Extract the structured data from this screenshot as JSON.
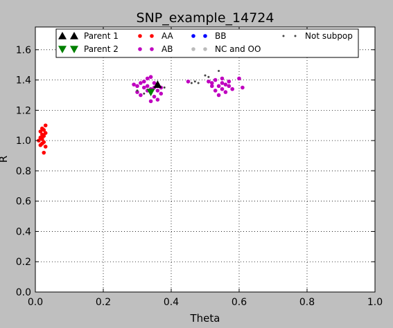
{
  "chart_data": {
    "type": "scatter",
    "title": "SNP_example_14724",
    "xlabel": "Theta",
    "ylabel": "R",
    "xlim": [
      0.0,
      1.0
    ],
    "ylim": [
      0.0,
      1.75
    ],
    "xticks": [
      "0.0",
      "0.2",
      "0.4",
      "0.6",
      "0.8",
      "1.0"
    ],
    "yticks": [
      "0.0",
      "0.2",
      "0.4",
      "0.6",
      "0.8",
      "1.0",
      "1.2",
      "1.4",
      "1.6"
    ],
    "grid": true,
    "legend_position": "top",
    "series": [
      {
        "name": "Parent 1",
        "marker": "triangle-up",
        "color": "#000000",
        "points": [
          [
            0.36,
            1.37
          ]
        ]
      },
      {
        "name": "Parent 2",
        "marker": "triangle-down",
        "color": "#008000",
        "points": [
          [
            0.34,
            1.32
          ]
        ]
      },
      {
        "name": "AA",
        "marker": "circle",
        "color": "#ff0000",
        "points": [
          [
            0.03,
            1.1
          ],
          [
            0.02,
            1.08
          ],
          [
            0.025,
            1.07
          ],
          [
            0.015,
            1.06
          ],
          [
            0.03,
            1.05
          ],
          [
            0.02,
            1.04
          ],
          [
            0.025,
            1.03
          ],
          [
            0.015,
            1.02
          ],
          [
            0.02,
            1.01
          ],
          [
            0.01,
            1.0
          ],
          [
            0.025,
            0.99
          ],
          [
            0.02,
            0.98
          ],
          [
            0.015,
            0.97
          ],
          [
            0.03,
            0.96
          ],
          [
            0.025,
            0.92
          ]
        ]
      },
      {
        "name": "AB",
        "marker": "circle",
        "color": "#bf00bf",
        "points": [
          [
            0.3,
            1.36
          ],
          [
            0.29,
            1.37
          ],
          [
            0.31,
            1.38
          ],
          [
            0.32,
            1.39
          ],
          [
            0.33,
            1.41
          ],
          [
            0.34,
            1.42
          ],
          [
            0.35,
            1.38
          ],
          [
            0.32,
            1.35
          ],
          [
            0.33,
            1.36
          ],
          [
            0.34,
            1.34
          ],
          [
            0.36,
            1.33
          ],
          [
            0.37,
            1.31
          ],
          [
            0.35,
            1.29
          ],
          [
            0.36,
            1.27
          ],
          [
            0.34,
            1.26
          ],
          [
            0.37,
            1.35
          ],
          [
            0.31,
            1.3
          ],
          [
            0.3,
            1.32
          ],
          [
            0.35,
            1.35
          ],
          [
            0.33,
            1.33
          ],
          [
            0.45,
            1.39
          ],
          [
            0.51,
            1.39
          ],
          [
            0.52,
            1.38
          ],
          [
            0.53,
            1.4
          ],
          [
            0.54,
            1.36
          ],
          [
            0.55,
            1.38
          ],
          [
            0.56,
            1.37
          ],
          [
            0.57,
            1.39
          ],
          [
            0.55,
            1.34
          ],
          [
            0.54,
            1.3
          ],
          [
            0.56,
            1.32
          ],
          [
            0.58,
            1.34
          ],
          [
            0.6,
            1.41
          ],
          [
            0.61,
            1.35
          ],
          [
            0.53,
            1.33
          ],
          [
            0.52,
            1.36
          ],
          [
            0.55,
            1.41
          ],
          [
            0.57,
            1.36
          ]
        ]
      },
      {
        "name": "BB",
        "marker": "circle",
        "color": "#0000ff",
        "points": []
      },
      {
        "name": "NC and OO",
        "marker": "circle",
        "color": "#bbbbbb",
        "points": []
      },
      {
        "name": "Not subpop",
        "marker": "small-dot",
        "color": "#444444",
        "points": [
          [
            0.47,
            1.39
          ],
          [
            0.48,
            1.38
          ],
          [
            0.5,
            1.43
          ],
          [
            0.51,
            1.42
          ],
          [
            0.54,
            1.46
          ],
          [
            0.38,
            1.35
          ],
          [
            0.32,
            1.31
          ],
          [
            0.3,
            1.33
          ],
          [
            0.46,
            1.38
          ]
        ]
      }
    ]
  }
}
